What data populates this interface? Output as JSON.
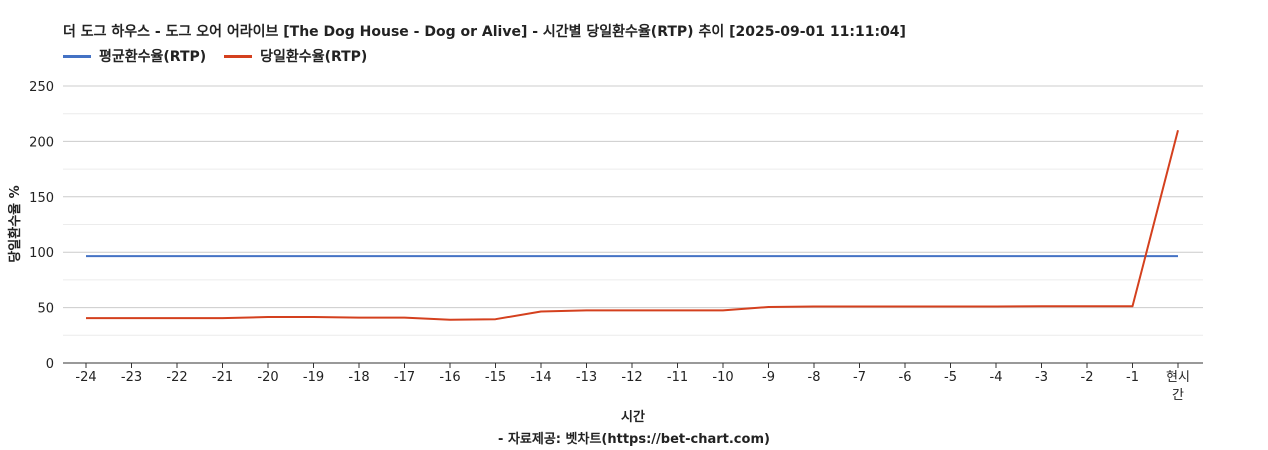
{
  "chart_data": {
    "type": "line",
    "title": "더 도그 하우스 - 도그 오어 어라이브 [The Dog House - Dog or Alive] - 시간별 당일환수율(RTP) 추이 [2025-09-01 11:11:04]",
    "xlabel": "시간",
    "ylabel": "당일환수율 %",
    "source": "- 자료제공: 벳차트(https://bet-chart.com)",
    "categories": [
      "-24",
      "-23",
      "-22",
      "-21",
      "-20",
      "-19",
      "-18",
      "-17",
      "-16",
      "-15",
      "-14",
      "-13",
      "-12",
      "-11",
      "-10",
      "-9",
      "-8",
      "-7",
      "-6",
      "-5",
      "-4",
      "-3",
      "-2",
      "-1",
      "현시간"
    ],
    "ylim": [
      0,
      250
    ],
    "yticks": [
      0,
      50,
      100,
      150,
      200,
      250
    ],
    "grid": true,
    "legend_position": "top-left",
    "series": [
      {
        "name": "평균환수율(RTP)",
        "color": "#4472c4",
        "values": [
          96.5,
          96.5,
          96.5,
          96.5,
          96.5,
          96.5,
          96.5,
          96.5,
          96.5,
          96.5,
          96.5,
          96.5,
          96.5,
          96.5,
          96.5,
          96.5,
          96.5,
          96.5,
          96.5,
          96.5,
          96.5,
          96.5,
          96.5,
          96.5,
          96.5
        ]
      },
      {
        "name": "당일환수율(RTP)",
        "color": "#d4401e",
        "values": [
          40.5,
          40.5,
          40.5,
          40.5,
          41.5,
          41.5,
          41,
          41,
          39,
          39.5,
          46.5,
          47.5,
          47.5,
          47.5,
          47.5,
          50.5,
          51,
          51,
          51,
          51,
          51,
          51.2,
          51.2,
          51.2,
          210
        ]
      }
    ]
  }
}
